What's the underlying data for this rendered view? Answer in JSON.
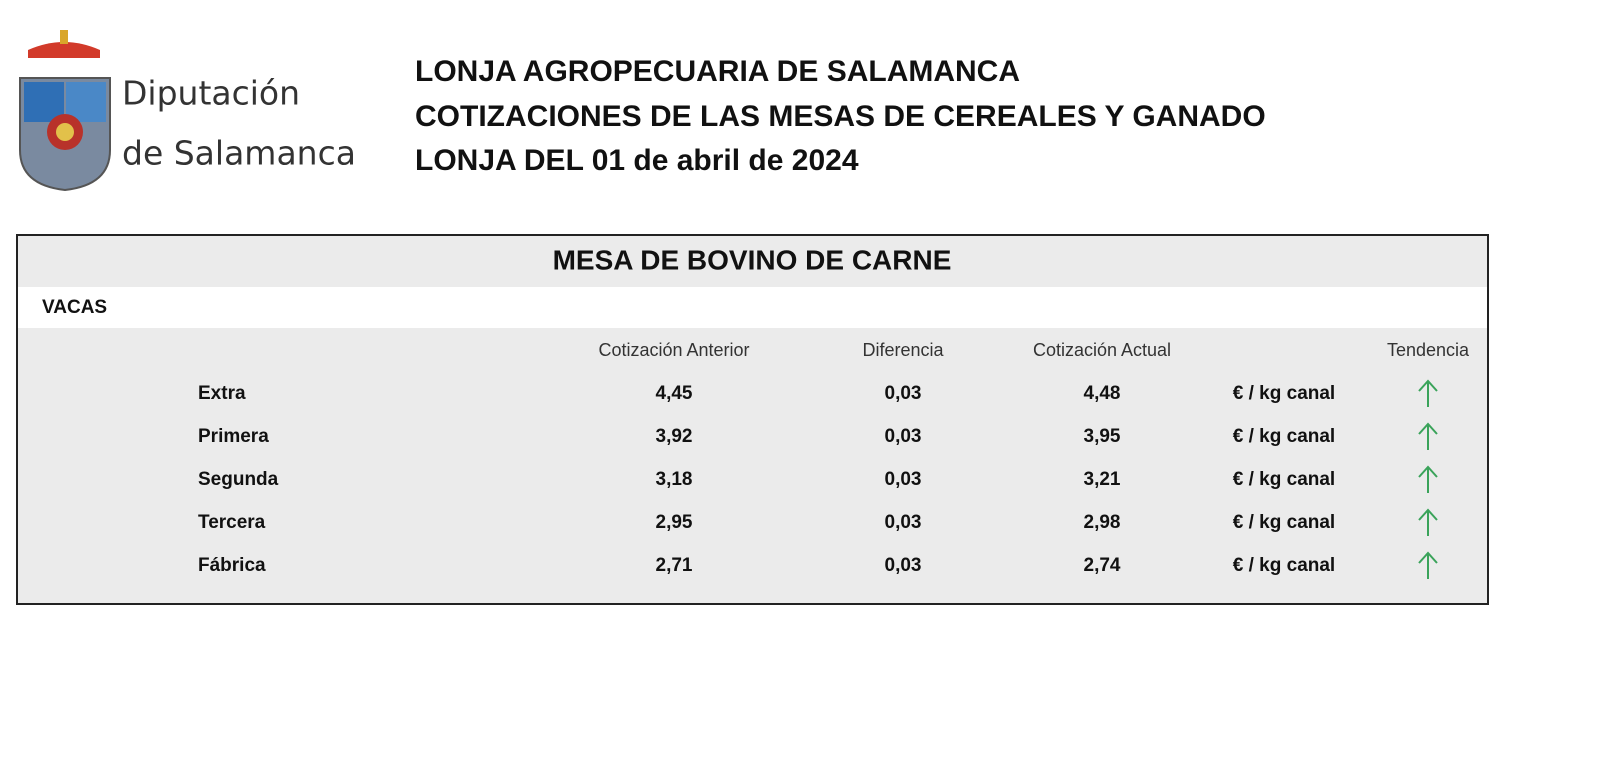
{
  "logo": {
    "line1": "Diputación",
    "line2": "de Salamanca"
  },
  "header": {
    "lines": [
      "LONJA AGROPECUARIA DE SALAMANCA",
      "COTIZACIONES DE LAS MESAS DE CEREALES Y GANADO",
      "LONJA DEL 01 de abril de 2024"
    ]
  },
  "table": {
    "title": "MESA DE BOVINO DE CARNE",
    "section": "VACAS",
    "columns": [
      "Cotización Anterior",
      "Diferencia",
      "Cotización Actual",
      "Tendencia"
    ],
    "rows": [
      [
        "Extra",
        "4,45",
        "0,03",
        "4,48",
        "€ / kg canal"
      ],
      [
        "Primera",
        "3,92",
        "0,03",
        "3,95",
        "€ / kg canal"
      ],
      [
        "Segunda",
        "3,18",
        "0,03",
        "3,21",
        "€ / kg canal"
      ],
      [
        "Tercera",
        "2,95",
        "0,03",
        "2,98",
        "€ / kg canal"
      ],
      [
        "Fábrica",
        "2,71",
        "0,03",
        "2,74",
        "€ / kg canal"
      ]
    ]
  }
}
